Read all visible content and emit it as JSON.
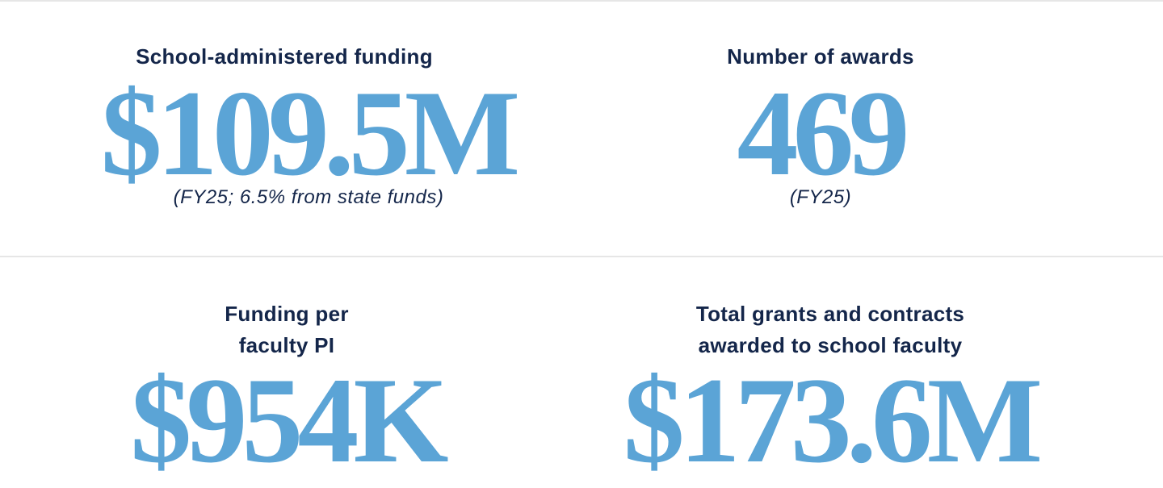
{
  "stats": [
    {
      "label_lines": [
        "School-administered funding"
      ],
      "value": "$109.5M",
      "note": "(FY25; 6.5% from state funds)"
    },
    {
      "label_lines": [
        "Number of awards"
      ],
      "value": "469",
      "note": "(FY25)"
    },
    {
      "label_lines": [
        "Funding per",
        "faculty PI"
      ],
      "value": "$954K"
    },
    {
      "label_lines": [
        "Total grants and contracts",
        "awarded to school faculty"
      ],
      "value": "$173.6M"
    }
  ]
}
